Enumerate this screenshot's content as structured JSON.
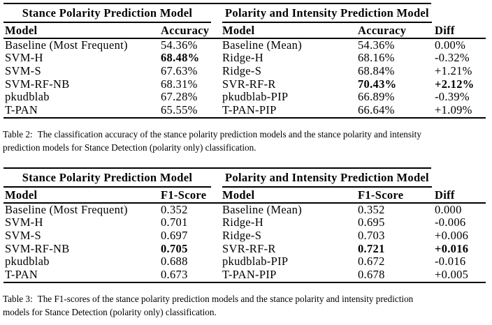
{
  "colors": {
    "background": "#ffffff",
    "text": "#000000",
    "rule": "#000000"
  },
  "tables": [
    {
      "group_headers": [
        "Stance Polarity Prediction Model",
        "Polarity and Intensity Prediction Model"
      ],
      "columns": [
        "Model",
        "Accuracy",
        "Model",
        "Accuracy",
        "Diff"
      ],
      "rows": [
        {
          "cells": [
            "Baseline (Most Frequent)",
            "54.36%",
            "Baseline (Mean)",
            "54.36%",
            "0.00%"
          ],
          "bold_cols": []
        },
        {
          "cells": [
            "SVM-H",
            "68.48%",
            "Ridge-H",
            "68.16%",
            "-0.32%"
          ],
          "bold_cols": [
            1
          ]
        },
        {
          "cells": [
            "SVM-S",
            "67.63%",
            "Ridge-S",
            "68.84%",
            "+1.21%"
          ],
          "bold_cols": []
        },
        {
          "cells": [
            "SVM-RF-NB",
            "68.31%",
            "SVR-RF-R",
            "70.43%",
            "+2.12%"
          ],
          "bold_cols": [
            3,
            4
          ]
        },
        {
          "cells": [
            "pkudblab",
            "67.28%",
            "pkudblab-PIP",
            "66.89%",
            "-0.39%"
          ],
          "bold_cols": []
        },
        {
          "cells": [
            "T-PAN",
            "65.55%",
            "T-PAN-PIP",
            "66.64%",
            "+1.09%"
          ],
          "bold_cols": []
        }
      ],
      "caption": {
        "label": "Table 2:",
        "line1_rest": "The classification accuracy of the stance polarity prediction models and the stance polarity and intensity",
        "line2": "prediction models for Stance Detection (polarity only) classification."
      }
    },
    {
      "group_headers": [
        "Stance Polarity Prediction Model",
        "Polarity and Intensity Prediction Model"
      ],
      "columns": [
        "Model",
        "F1-Score",
        "Model",
        "F1-Score",
        "Diff"
      ],
      "rows": [
        {
          "cells": [
            "Baseline (Most Frequent)",
            "0.352",
            "Baseline (Mean)",
            "0.352",
            "0.000"
          ],
          "bold_cols": []
        },
        {
          "cells": [
            "SVM-H",
            "0.701",
            "Ridge-H",
            "0.695",
            "-0.006"
          ],
          "bold_cols": []
        },
        {
          "cells": [
            "SVM-S",
            "0.697",
            "Ridge-S",
            "0.703",
            "+0.006"
          ],
          "bold_cols": []
        },
        {
          "cells": [
            "SVM-RF-NB",
            "0.705",
            "SVR-RF-R",
            "0.721",
            "+0.016"
          ],
          "bold_cols": [
            1,
            3,
            4
          ]
        },
        {
          "cells": [
            "pkudblab",
            "0.688",
            "pkudblab-PIP",
            "0.672",
            "-0.016"
          ],
          "bold_cols": []
        },
        {
          "cells": [
            "T-PAN",
            "0.673",
            "T-PAN-PIP",
            "0.678",
            "+0.005"
          ],
          "bold_cols": []
        }
      ],
      "caption": {
        "label": "Table 3:",
        "line1_rest": "The F1-scores of the stance polarity prediction models and the stance polarity and intensity prediction",
        "line2": "models for Stance Detection (polarity only) classification."
      }
    }
  ]
}
